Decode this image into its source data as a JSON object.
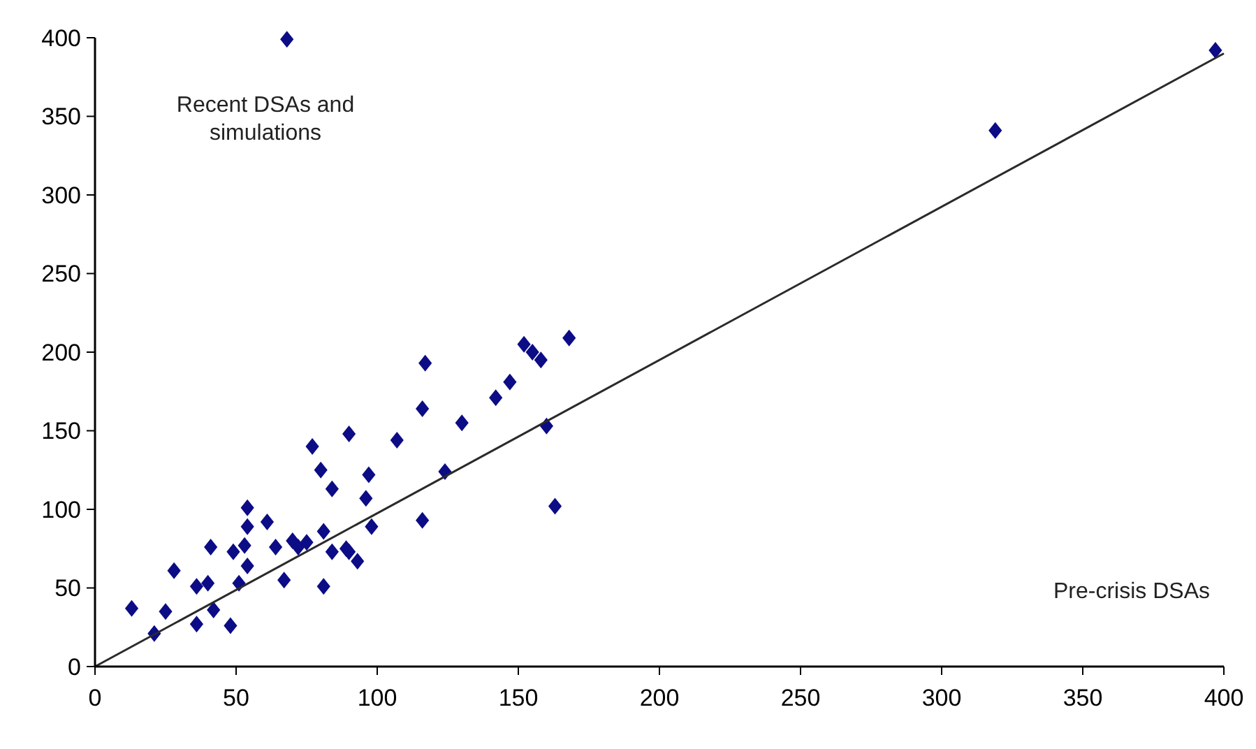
{
  "chart_data": {
    "type": "scatter",
    "grid": false,
    "xlim": [
      0,
      400
    ],
    "ylim": [
      0,
      400
    ],
    "xticks": [
      0,
      50,
      100,
      150,
      200,
      250,
      300,
      350,
      400
    ],
    "yticks": [
      0,
      50,
      100,
      150,
      200,
      250,
      300,
      350,
      400
    ],
    "annotations": [
      "Recent DSAs and\nsimulations",
      "Pre-crisis DSAs"
    ],
    "series": [
      {
        "marker": "diamond",
        "color": "#0c0c86",
        "x": [
          13,
          21,
          25,
          28,
          36,
          40,
          36,
          42,
          41,
          48,
          49,
          51,
          54,
          54,
          53,
          54,
          61,
          64,
          67,
          70,
          72,
          75,
          77,
          80,
          84,
          81,
          84,
          81,
          90,
          90,
          93,
          89,
          97,
          96,
          98,
          107,
          116,
          116,
          117,
          124,
          130,
          142,
          147,
          152,
          155,
          158,
          160,
          163,
          168,
          68,
          319,
          397
        ],
        "values": [
          37,
          21,
          35,
          61,
          51,
          53,
          27,
          36,
          76,
          26,
          73,
          53,
          101,
          89,
          77,
          64,
          92,
          76,
          55,
          80,
          76,
          79,
          140,
          125,
          113,
          86,
          73,
          51,
          148,
          73,
          67,
          75,
          122,
          107,
          89,
          144,
          93,
          164,
          193,
          124,
          155,
          171,
          181,
          205,
          200,
          195,
          153,
          102,
          209,
          399,
          341,
          392
        ]
      },
      {
        "type": "line",
        "color": "#2a2a2a",
        "x": [
          0,
          400
        ],
        "values": [
          0,
          390
        ]
      }
    ]
  }
}
